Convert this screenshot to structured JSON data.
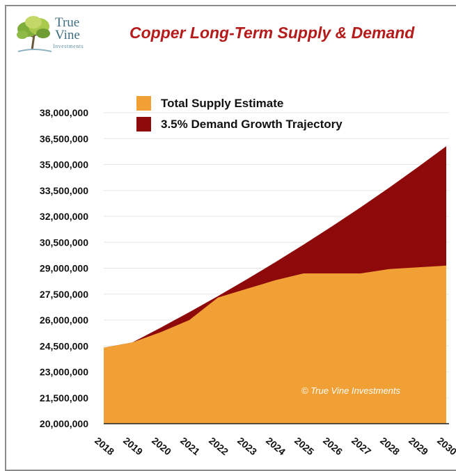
{
  "logo": {
    "line1": "True",
    "line2": "Vine",
    "line3": "Investments"
  },
  "chart_data": {
    "type": "area",
    "title": "Copper Long-Term Supply & Demand",
    "x": [
      "2018",
      "2019",
      "2020",
      "2021",
      "2022",
      "2023",
      "2024",
      "2025",
      "2026",
      "2027",
      "2028",
      "2029",
      "2030"
    ],
    "ylim": [
      20000000,
      38000000
    ],
    "y_ticks": [
      "20,000,000",
      "21,500,000",
      "23,000,000",
      "24,500,000",
      "26,000,000",
      "27,500,000",
      "29,000,000",
      "30,500,000",
      "32,000,000",
      "33,500,000",
      "35,000,000",
      "36,500,000",
      "38,000,000"
    ],
    "series": [
      {
        "name": "Total Supply Estimate",
        "color": "#f0a035",
        "values": [
          24400000,
          24700000,
          25300000,
          26000000,
          27300000,
          27800000,
          28300000,
          28700000,
          28700000,
          28700000,
          28950000,
          29050000,
          29150000
        ]
      },
      {
        "name": "3.5% Demand Growth Trajectory",
        "color": "#8e0a0a",
        "values": [
          24400000,
          24700000,
          25564500,
          26459258,
          27385332,
          28343819,
          29335853,
          30362608,
          31425300,
          32525185,
          33663567,
          34841791,
          36061253
        ]
      }
    ],
    "legend_position": "top-left",
    "grid": true,
    "watermark": "© True Vine Investments"
  }
}
